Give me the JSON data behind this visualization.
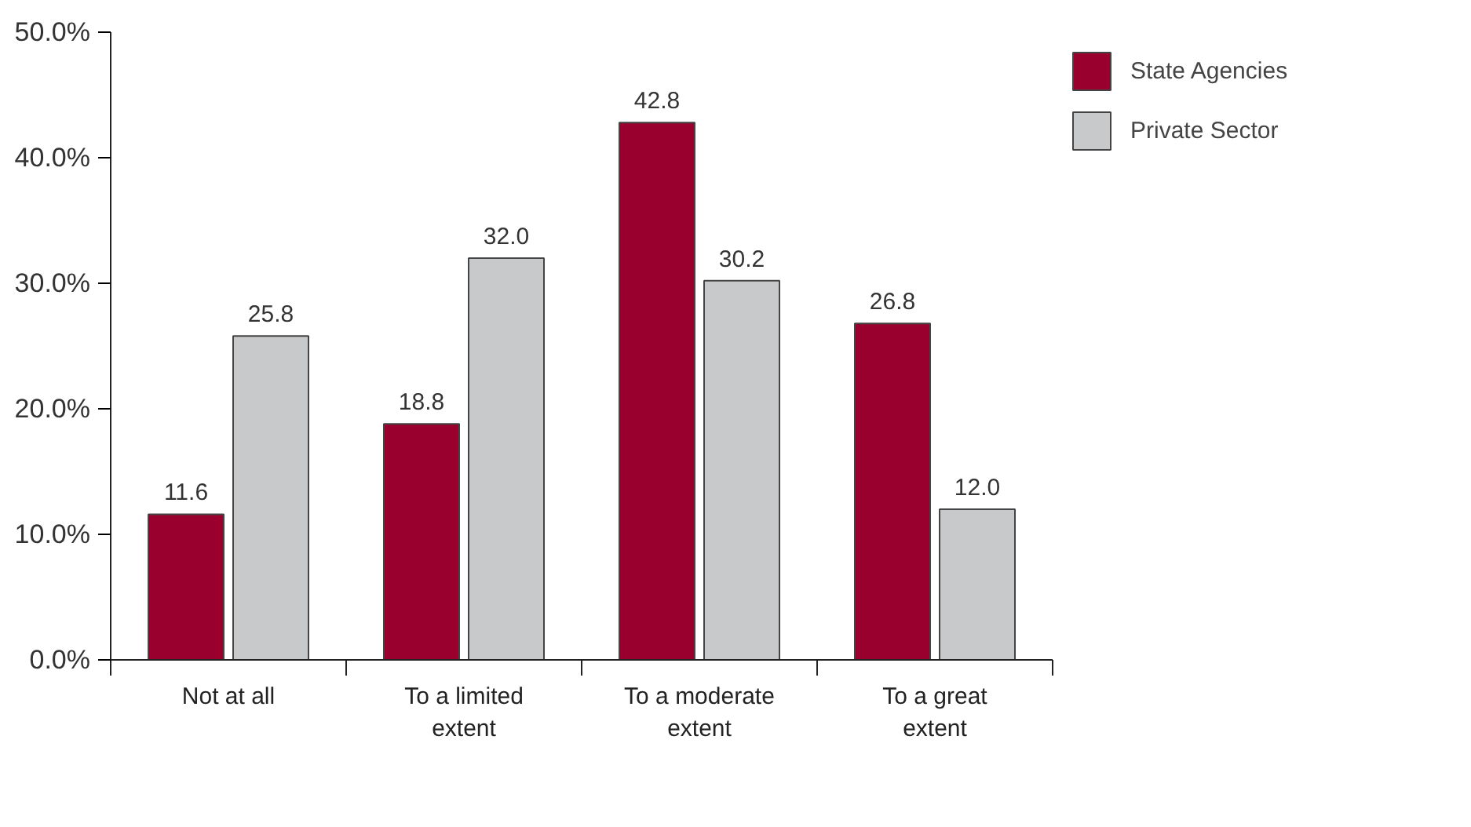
{
  "chart_data": {
    "type": "bar",
    "categories": [
      "Not at all",
      "To a limited extent",
      "To a moderate extent",
      "To a great extent"
    ],
    "series": [
      {
        "name": "State Agencies",
        "color": "#99002e",
        "values": [
          11.6,
          18.8,
          42.8,
          26.8
        ],
        "value_labels": [
          "11.6",
          "18.8",
          "42.8",
          "26.8"
        ]
      },
      {
        "name": "Private Sector",
        "color": "#c8c9cb",
        "values": [
          25.8,
          32.0,
          30.2,
          12.0
        ],
        "value_labels": [
          "25.8",
          "32.0",
          "30.2",
          "12.0"
        ]
      }
    ],
    "ylim": [
      0,
      50
    ],
    "yticks": [
      {
        "value": 0,
        "label": "0.0%"
      },
      {
        "value": 10,
        "label": "10.0%"
      },
      {
        "value": 20,
        "label": "20.0%"
      },
      {
        "value": 30,
        "label": "30.0%"
      },
      {
        "value": 40,
        "label": "40.0%"
      },
      {
        "value": 50,
        "label": "50.0%"
      }
    ],
    "grid": false,
    "legend": "top right"
  }
}
